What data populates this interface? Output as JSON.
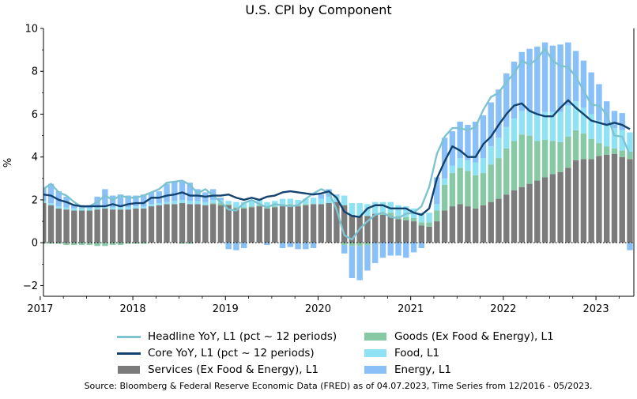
{
  "chart_data": {
    "type": "bar",
    "title": "U.S. CPI by Component",
    "ylabel": "%",
    "xlabel": "",
    "ylim": [
      -2.5,
      10
    ],
    "yticks": [
      -2,
      0,
      2,
      4,
      6,
      8,
      10
    ],
    "yticks_labels": [
      "−2",
      "0",
      "2",
      "4",
      "6",
      "8",
      "10"
    ],
    "xticks": [
      "2017",
      "2018",
      "2019",
      "2020",
      "2021",
      "2022",
      "2023"
    ],
    "xlim": [
      "2016-12",
      "2023-05"
    ],
    "grid": false,
    "zero_line": "dotted",
    "months": [
      "2016-12",
      "2017-01",
      "2017-02",
      "2017-03",
      "2017-04",
      "2017-05",
      "2017-06",
      "2017-07",
      "2017-08",
      "2017-09",
      "2017-10",
      "2017-11",
      "2017-12",
      "2018-01",
      "2018-02",
      "2018-03",
      "2018-04",
      "2018-05",
      "2018-06",
      "2018-07",
      "2018-08",
      "2018-09",
      "2018-10",
      "2018-11",
      "2018-12",
      "2019-01",
      "2019-02",
      "2019-03",
      "2019-04",
      "2019-05",
      "2019-06",
      "2019-07",
      "2019-08",
      "2019-09",
      "2019-10",
      "2019-11",
      "2019-12",
      "2020-01",
      "2020-02",
      "2020-03",
      "2020-04",
      "2020-05",
      "2020-06",
      "2020-07",
      "2020-08",
      "2020-09",
      "2020-10",
      "2020-11",
      "2020-12",
      "2021-01",
      "2021-02",
      "2021-03",
      "2021-04",
      "2021-05",
      "2021-06",
      "2021-07",
      "2021-08",
      "2021-09",
      "2021-10",
      "2021-11",
      "2021-12",
      "2022-01",
      "2022-02",
      "2022-03",
      "2022-04",
      "2022-05",
      "2022-06",
      "2022-07",
      "2022-08",
      "2022-09",
      "2022-10",
      "2022-11",
      "2022-12",
      "2023-01",
      "2023-02",
      "2023-03",
      "2023-04",
      "2023-05"
    ],
    "stacked_series": [
      {
        "name": "Services (Ex Food & Energy), L1",
        "color": "#7b7b7b",
        "values": [
          1.85,
          1.85,
          1.75,
          1.6,
          1.55,
          1.5,
          1.5,
          1.5,
          1.55,
          1.6,
          1.55,
          1.55,
          1.55,
          1.6,
          1.6,
          1.7,
          1.75,
          1.8,
          1.8,
          1.85,
          1.8,
          1.8,
          1.75,
          1.8,
          1.75,
          1.75,
          1.6,
          1.6,
          1.65,
          1.7,
          1.6,
          1.65,
          1.7,
          1.7,
          1.7,
          1.75,
          1.8,
          1.8,
          1.85,
          1.9,
          1.75,
          1.3,
          1.25,
          1.25,
          1.35,
          1.3,
          1.25,
          1.1,
          1.05,
          1.0,
          0.8,
          0.75,
          1.0,
          1.5,
          1.7,
          1.8,
          1.7,
          1.6,
          1.75,
          1.9,
          2.05,
          2.25,
          2.45,
          2.6,
          2.75,
          2.9,
          3.05,
          3.2,
          3.3,
          3.5,
          3.85,
          3.9,
          3.9,
          4.05,
          4.1,
          4.15,
          4.0,
          3.9
        ]
      },
      {
        "name": "Goods (Ex Food & Energy), L1",
        "color": "#88c9a5",
        "values": [
          0.0,
          -0.05,
          -0.05,
          -0.05,
          -0.1,
          -0.1,
          -0.1,
          -0.1,
          -0.15,
          -0.15,
          -0.1,
          -0.1,
          -0.05,
          -0.05,
          -0.05,
          0.0,
          0.0,
          0.0,
          0.0,
          -0.05,
          -0.05,
          0.0,
          0.0,
          0.05,
          0.1,
          0.05,
          0.05,
          0.05,
          0.05,
          0.05,
          0.05,
          0.05,
          0.1,
          0.1,
          0.05,
          0.05,
          0.0,
          0.0,
          0.0,
          0.0,
          -0.1,
          -0.15,
          -0.15,
          -0.1,
          0.0,
          0.1,
          0.15,
          0.15,
          0.15,
          0.15,
          0.15,
          0.2,
          0.5,
          1.2,
          1.55,
          1.7,
          1.65,
          1.55,
          1.5,
          1.75,
          1.9,
          2.15,
          2.3,
          2.45,
          2.25,
          1.85,
          1.75,
          1.55,
          1.4,
          1.45,
          1.4,
          1.2,
          0.95,
          0.6,
          0.4,
          0.25,
          0.3,
          0.35
        ]
      },
      {
        "name": "Food, L1",
        "color": "#8fe2f4",
        "values": [
          0.1,
          0.1,
          0.1,
          0.1,
          0.1,
          0.1,
          0.1,
          0.1,
          0.1,
          0.1,
          0.1,
          0.1,
          0.1,
          0.1,
          0.1,
          0.1,
          0.1,
          0.1,
          0.15,
          0.15,
          0.15,
          0.15,
          0.15,
          0.15,
          0.15,
          0.15,
          0.25,
          0.25,
          0.25,
          0.25,
          0.25,
          0.25,
          0.25,
          0.25,
          0.25,
          0.25,
          0.3,
          0.25,
          0.3,
          0.3,
          0.45,
          0.55,
          0.6,
          0.55,
          0.55,
          0.5,
          0.5,
          0.5,
          0.5,
          0.45,
          0.45,
          0.45,
          0.3,
          0.3,
          0.35,
          0.45,
          0.5,
          0.6,
          0.7,
          0.85,
          0.95,
          1.0,
          1.05,
          1.1,
          1.15,
          1.25,
          1.3,
          1.35,
          1.4,
          1.45,
          1.35,
          1.2,
          1.15,
          1.05,
          1.0,
          0.95,
          0.95,
          0.9
        ]
      },
      {
        "name": "Energy, L1",
        "color": "#88c0f7",
        "values": [
          0.4,
          0.6,
          0.9,
          0.7,
          0.5,
          0.2,
          0.15,
          0.15,
          0.5,
          0.8,
          0.55,
          0.6,
          0.55,
          0.5,
          0.55,
          0.55,
          0.55,
          0.85,
          0.9,
          0.85,
          0.85,
          0.55,
          0.45,
          0.5,
          0.1,
          -0.3,
          -0.35,
          -0.25,
          0.0,
          0.05,
          -0.1,
          0.0,
          -0.25,
          -0.2,
          -0.3,
          -0.3,
          -0.25,
          0.2,
          0.35,
          0.05,
          -0.4,
          -1.5,
          -1.6,
          -1.2,
          -0.95,
          -0.7,
          -0.6,
          -0.6,
          -0.7,
          -0.45,
          -0.25,
          0.0,
          1.25,
          1.9,
          1.6,
          1.7,
          1.65,
          1.9,
          2.0,
          2.05,
          2.25,
          2.5,
          2.65,
          2.75,
          2.9,
          3.15,
          3.25,
          3.1,
          3.15,
          2.95,
          2.35,
          2.2,
          1.95,
          1.7,
          1.1,
          0.8,
          0.8,
          -0.35
        ]
      }
    ],
    "negative_only_series": [
      {
        "name": "Goods (Ex Food & Energy), L1 (negative)",
        "note": "negative values drawn below zero"
      }
    ],
    "line_series": [
      {
        "name": "Headline YoY, L1 (pct ~ 12 periods)",
        "color": "#7ec3d0",
        "width": 2.4,
        "values": [
          2.1,
          2.5,
          2.75,
          2.35,
          2.2,
          1.9,
          1.65,
          1.7,
          1.9,
          2.2,
          2.0,
          2.2,
          2.1,
          2.1,
          2.2,
          2.35,
          2.5,
          2.8,
          2.85,
          2.9,
          2.7,
          2.3,
          2.5,
          2.2,
          1.9,
          1.55,
          1.5,
          1.85,
          2.0,
          1.8,
          1.65,
          1.8,
          1.75,
          1.7,
          1.75,
          2.05,
          2.3,
          2.5,
          2.35,
          1.55,
          0.35,
          0.15,
          0.65,
          1.0,
          1.3,
          1.4,
          1.2,
          1.15,
          1.35,
          1.4,
          1.7,
          2.6,
          4.15,
          4.95,
          5.35,
          5.35,
          5.25,
          5.4,
          6.2,
          6.8,
          7.0,
          7.5,
          7.9,
          8.5,
          8.3,
          8.6,
          9.05,
          8.5,
          8.25,
          8.2,
          7.75,
          7.1,
          6.45,
          6.4,
          6.0,
          5.0,
          4.95,
          4.1
        ]
      },
      {
        "name": "Core YoY, L1 (pct ~ 12 periods)",
        "color": "#13426f",
        "width": 2.4,
        "values": [
          2.25,
          2.25,
          2.2,
          2.0,
          1.9,
          1.75,
          1.7,
          1.7,
          1.7,
          1.7,
          1.8,
          1.7,
          1.8,
          1.85,
          1.85,
          2.1,
          2.1,
          2.2,
          2.25,
          2.35,
          2.2,
          2.2,
          2.15,
          2.2,
          2.2,
          2.25,
          2.1,
          2.0,
          2.1,
          2.0,
          2.15,
          2.2,
          2.35,
          2.4,
          2.35,
          2.3,
          2.25,
          2.3,
          2.4,
          2.1,
          1.45,
          1.25,
          1.2,
          1.6,
          1.75,
          1.75,
          1.6,
          1.6,
          1.6,
          1.4,
          1.3,
          1.6,
          3.0,
          3.8,
          4.5,
          4.3,
          4.0,
          4.0,
          4.6,
          4.95,
          5.5,
          6.0,
          6.4,
          6.5,
          6.15,
          6.0,
          5.9,
          5.9,
          6.3,
          6.65,
          6.3,
          6.0,
          5.7,
          5.6,
          5.5,
          5.6,
          5.5,
          5.3
        ]
      }
    ],
    "legend": {
      "placement": "bottom",
      "entries": [
        {
          "label": "Headline YoY, L1 (pct ~ 12 periods)",
          "kind": "line",
          "color": "#7ec3d0"
        },
        {
          "label": "Core YoY, L1 (pct ~ 12 periods)",
          "kind": "line",
          "color": "#13426f"
        },
        {
          "label": "Services (Ex Food & Energy), L1",
          "kind": "box",
          "color": "#7b7b7b"
        },
        {
          "label": "Goods (Ex Food & Energy), L1",
          "kind": "box",
          "color": "#88c9a5"
        },
        {
          "label": "Food, L1",
          "kind": "box",
          "color": "#8fe2f4"
        },
        {
          "label": "Energy, L1",
          "kind": "box",
          "color": "#88c0f7"
        }
      ]
    },
    "source": "Source: Bloomberg & Federal Reserve Economic Data (FRED) as of 04.07.2023, Time Series from 12/2016 - 05/2023."
  }
}
